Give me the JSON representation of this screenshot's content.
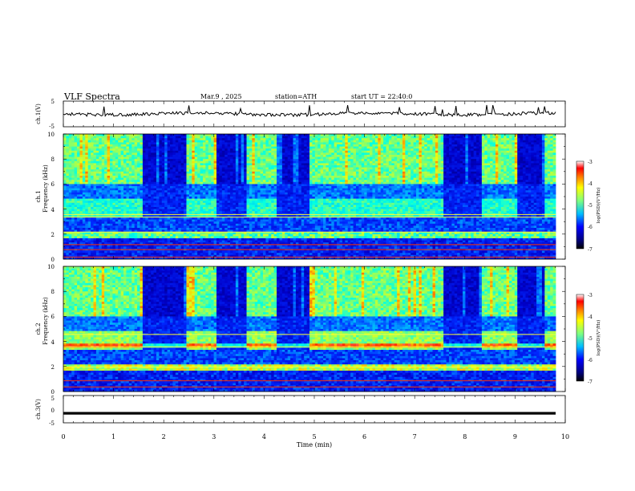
{
  "header": {
    "title": "VLF  Spectra",
    "date": "Mar.9  , 2025",
    "station": "station=ATH",
    "start_ut": "start  UT  =   22:40:0"
  },
  "chart_data": [
    {
      "type": "line",
      "panel": "ch1",
      "ylabel": "ch.1(V)",
      "ylim": [
        -5,
        5
      ],
      "yticks": [
        "5",
        "-5"
      ],
      "xlim": [
        0,
        10
      ],
      "series": [
        {
          "color": "#000000",
          "approx_level": 0,
          "note_values": [
            0
          ]
        }
      ]
    },
    {
      "type": "heatmap",
      "panel": "ch1-spectrogram",
      "ylabel": "ch.1\nFrequency  (kHz)",
      "ylabel_line1": "ch.1",
      "ylabel_line2": "Frequency  (kHz)",
      "ylim": [
        0,
        10
      ],
      "yticks": [
        "0",
        "2",
        "4",
        "6",
        "8",
        "10"
      ],
      "xlim": [
        0,
        10
      ],
      "colorbar": {
        "label": "log(PSD)(V²/Hz)",
        "range": [
          -7,
          -3
        ],
        "ticks": [
          "-3",
          "-4",
          "-5",
          "-6",
          "-7"
        ]
      },
      "quiet_intervals_min": [
        [
          1.6,
          2.45
        ],
        [
          3.05,
          3.65
        ],
        [
          4.25,
          4.9
        ],
        [
          7.55,
          8.35
        ],
        [
          9.05,
          9.6
        ]
      ]
    },
    {
      "type": "heatmap",
      "panel": "ch2-spectrogram",
      "ylabel_line1": "ch.2",
      "ylabel_line2": "Frequency  (kHz)",
      "ylim": [
        0,
        10
      ],
      "yticks": [
        "0",
        "2",
        "4",
        "6",
        "8",
        "10"
      ],
      "xlim": [
        0,
        10
      ],
      "colorbar": {
        "label": "log(PSD)(V²/Hz)",
        "range": [
          -7,
          -3
        ],
        "ticks": [
          "-3",
          "-4",
          "-5",
          "-6",
          "-7"
        ]
      },
      "quiet_intervals_min": [
        [
          1.6,
          2.45
        ],
        [
          3.05,
          3.65
        ],
        [
          4.25,
          4.9
        ],
        [
          7.55,
          8.35
        ],
        [
          9.05,
          9.6
        ]
      ]
    },
    {
      "type": "line",
      "panel": "ch3",
      "ylabel": "ch.3(V)",
      "ylim": [
        -5,
        5
      ],
      "yticks": [
        "5",
        "0",
        "-5"
      ],
      "xlim": [
        0,
        10
      ],
      "xticks": [
        "0",
        "1",
        "2",
        "3",
        "4",
        "5",
        "6",
        "7",
        "8",
        "9",
        "10"
      ],
      "xlabel": "Time  (min)",
      "series": [
        {
          "color": "#000000",
          "approx_level": -1.5
        }
      ]
    }
  ],
  "colors": {
    "jet": [
      "#00007f",
      "#0000ff",
      "#007fff",
      "#00ffff",
      "#7fff7f",
      "#ffff00",
      "#ff7f00",
      "#ff0000",
      "#ffcccc"
    ]
  }
}
